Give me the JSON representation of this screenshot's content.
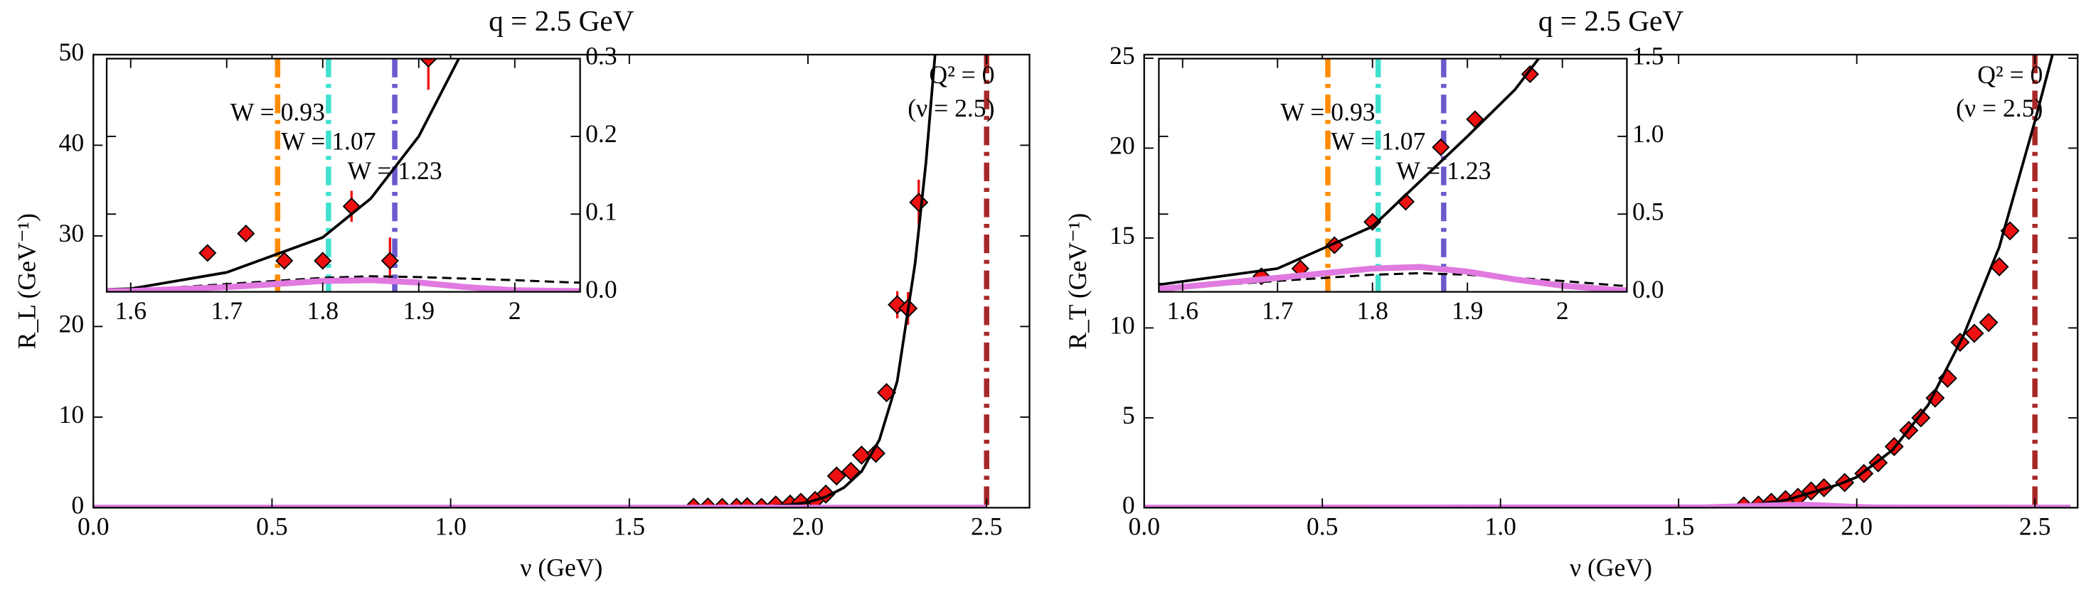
{
  "chart_data": [
    {
      "type": "scatter",
      "title": "q = 2.5 GeV",
      "xlabel": "ν (GeV)",
      "ylabel": "R_L (GeV⁻¹)",
      "xlim": [
        0,
        2.62
      ],
      "ylim": [
        0,
        50
      ],
      "xticks": [
        {
          "value": 0,
          "label": "0.0"
        },
        0.5,
        {
          "value": 1,
          "label": "1.0"
        },
        1.5,
        {
          "value": 2,
          "label": "2.0"
        },
        2.5
      ],
      "yticks": [
        0,
        10,
        20,
        30,
        40,
        50
      ],
      "series": [
        {
          "marker": "diamond",
          "color": "#ee1111",
          "x": [
            1.68,
            1.72,
            1.76,
            1.8,
            1.83,
            1.87,
            1.91,
            1.95,
            1.98,
            2.02,
            2.05,
            2.08,
            2.12,
            2.15,
            2.19,
            2.22,
            2.25,
            2.28,
            2.31
          ],
          "values": [
            0.05,
            0.075,
            0.04,
            0.04,
            0.11,
            0.04,
            0.3,
            0.4,
            0.6,
            0.8,
            1.5,
            3.5,
            4,
            5.8,
            6,
            12.7,
            22.4,
            22,
            33.7
          ],
          "errors": [
            0.01,
            0.01,
            0.01,
            0.01,
            0.02,
            0.03,
            0.04,
            0.1,
            0.1,
            0.2,
            0.3,
            0.4,
            0.5,
            0.5,
            0.5,
            0.8,
            1.5,
            1.8,
            2.5
          ]
        },
        {
          "linestyle": "solid",
          "color": "#000000",
          "x": [
            0,
            1.5,
            1.6,
            1.7,
            1.8,
            1.85,
            1.9,
            1.95,
            2.0,
            2.05,
            2.1,
            2.15,
            2.2,
            2.25,
            2.3,
            2.33,
            2.36
          ],
          "values": [
            0,
            0.001,
            0.004,
            0.025,
            0.07,
            0.12,
            0.2,
            0.32,
            0.6,
            1.2,
            2.2,
            4,
            7.5,
            14,
            27,
            38,
            52
          ]
        },
        {
          "linestyle": "dashed",
          "color": "#000000",
          "x": [
            0,
            1.6,
            1.7,
            1.8,
            1.85,
            1.9,
            2.0,
            2.06,
            2.5
          ],
          "values": [
            0,
            0.002,
            0.01,
            0.018,
            0.02,
            0.019,
            0.015,
            0.012,
            0.003
          ]
        },
        {
          "linestyle": "thick",
          "color": "#e07ae0",
          "x": [
            0,
            1.6,
            1.7,
            1.8,
            1.85,
            1.9,
            1.95,
            2.0,
            2.06,
            2.5
          ],
          "values": [
            0,
            0.001,
            0.006,
            0.014,
            0.015,
            0.012,
            0.006,
            0.002,
            0.001,
            0
          ]
        }
      ],
      "vlines": [
        {
          "x": 2.5,
          "color": "#a82828",
          "labels": [
            "Q² = 0",
            "(ν = 2.5)"
          ]
        }
      ],
      "inset": {
        "xlim": [
          1.575,
          2.068
        ],
        "ylim": [
          0,
          0.3
        ],
        "xticks": [
          1.6,
          1.7,
          1.8,
          1.9,
          2.0
        ],
        "yticks": [
          {
            "value": 0,
            "label": "0.0"
          },
          0.1,
          0.2,
          0.3
        ],
        "vlines": [
          {
            "x": 1.753,
            "color": "#ff8c00",
            "labels": [
              "W = 0.93"
            ]
          },
          {
            "x": 1.806,
            "color": "#40e0d0",
            "labels": [
              "W = 1.07"
            ]
          },
          {
            "x": 1.875,
            "color": "#6a5acd",
            "labels": [
              "W = 1.23"
            ]
          }
        ]
      }
    },
    {
      "type": "scatter",
      "title": "q = 2.5 GeV",
      "xlabel": "ν (GeV)",
      "ylabel": "R_T (GeV⁻¹)",
      "xlim": [
        0,
        2.62
      ],
      "ylim": [
        0,
        25.2
      ],
      "xticks": [
        {
          "value": 0,
          "label": "0.0"
        },
        0.5,
        {
          "value": 1,
          "label": "1.0"
        },
        1.5,
        {
          "value": 2,
          "label": "2.0"
        },
        2.5
      ],
      "yticks": [
        0,
        5,
        10,
        15,
        20,
        25
      ],
      "series": [
        {
          "marker": "diamond",
          "color": "#ee1111",
          "x": [
            1.683,
            1.724,
            1.76,
            1.8,
            1.835,
            1.872,
            1.908,
            1.966,
            2.02,
            2.06,
            2.105,
            2.146,
            2.18,
            2.22,
            2.255,
            2.29,
            2.33,
            2.37,
            2.4,
            2.43
          ],
          "values": [
            0.1,
            0.15,
            0.3,
            0.45,
            0.58,
            0.93,
            1.11,
            1.4,
            1.9,
            2.5,
            3.4,
            4.3,
            5.0,
            6.1,
            7.2,
            9.2,
            9.7,
            10.3,
            13.4,
            15.4
          ],
          "errors": [
            0.01,
            0.01,
            0.01,
            0.01,
            0.01,
            0.02,
            0.02,
            0.03,
            0.04,
            0.05,
            0.06,
            0.07,
            0.08,
            0.09,
            0.1,
            0.12,
            0.13,
            0.15,
            0.18,
            0.2
          ]
        },
        {
          "linestyle": "solid",
          "color": "#000000",
          "x": [
            0,
            1.5,
            1.58,
            1.7,
            1.8,
            1.9,
            1.95,
            2.0,
            2.1,
            2.2,
            2.3,
            2.4,
            2.5,
            2.56
          ],
          "values": [
            0,
            0.02,
            0.05,
            0.15,
            0.42,
            1.0,
            1.3,
            1.7,
            3.2,
            5.7,
            9.6,
            14.5,
            21.5,
            26
          ]
        },
        {
          "linestyle": "dashed",
          "color": "#000000",
          "x": [
            0,
            1.58,
            1.7,
            1.8,
            1.85,
            1.9,
            2.0,
            2.06,
            2.3,
            2.6
          ],
          "values": [
            0,
            0.02,
            0.07,
            0.11,
            0.12,
            0.11,
            0.07,
            0.04,
            0.01,
            0
          ]
        },
        {
          "linestyle": "thick",
          "color": "#e07ae0",
          "x": [
            0,
            1.58,
            1.7,
            1.8,
            1.85,
            1.9,
            1.95,
            2.0,
            2.06,
            2.6
          ],
          "values": [
            0,
            0.02,
            0.09,
            0.15,
            0.16,
            0.13,
            0.08,
            0.04,
            0.01,
            0
          ]
        }
      ],
      "vlines": [
        {
          "x": 2.5,
          "color": "#a82828",
          "labels": [
            "Q² = 0",
            "(ν = 2.5)"
          ]
        }
      ],
      "inset": {
        "xlim": [
          1.575,
          2.068
        ],
        "ylim": [
          0,
          1.5
        ],
        "xticks": [
          1.6,
          1.7,
          1.8,
          1.9,
          2.0
        ],
        "yticks": [
          {
            "value": 0,
            "label": "0.0"
          },
          0.5,
          {
            "value": 1,
            "label": "1.0"
          },
          1.5
        ],
        "vlines": [
          {
            "x": 1.753,
            "color": "#ff8c00",
            "labels": [
              "W = 0.93"
            ]
          },
          {
            "x": 1.806,
            "color": "#40e0d0",
            "labels": [
              "W = 1.07"
            ]
          },
          {
            "x": 1.875,
            "color": "#6a5acd",
            "labels": [
              "W = 1.23"
            ]
          }
        ]
      }
    }
  ]
}
